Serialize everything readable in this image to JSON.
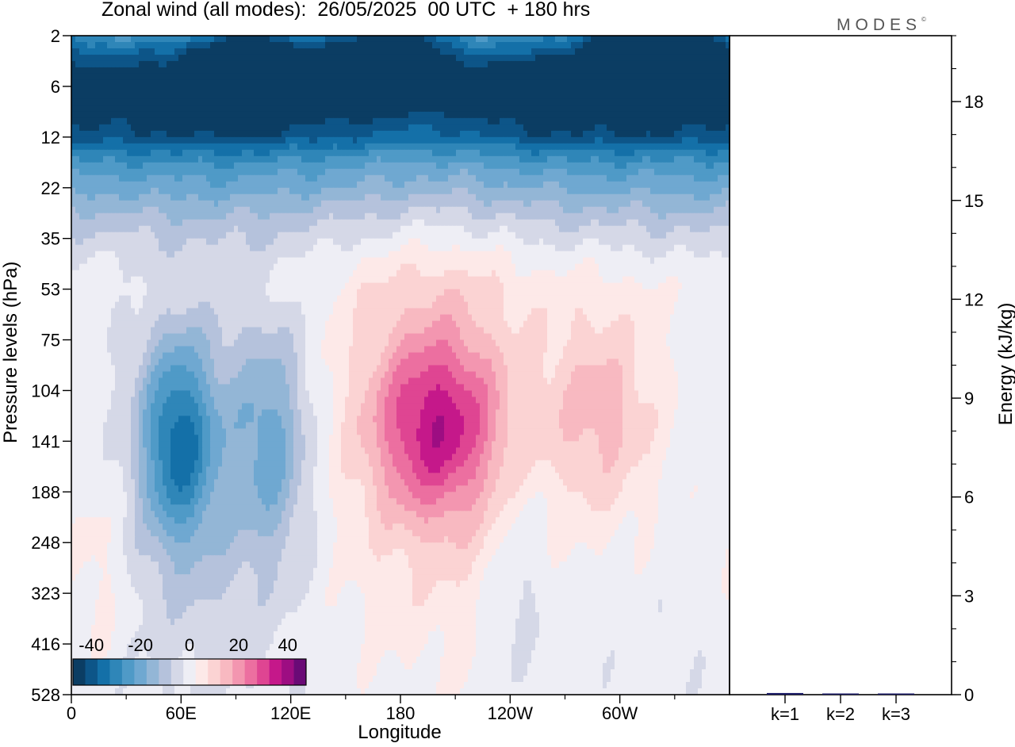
{
  "header": {
    "title": "Zonal wind (all modes):  26/05/2025  00 UTC  + 180 hrs",
    "logo_text": "MODES",
    "logo_mark": "©"
  },
  "chart_data": [
    {
      "type": "heatmap",
      "title": "Zonal wind (all modes):  26/05/2025  00 UTC  + 180 hrs",
      "xlabel": "Longitude",
      "ylabel": "Pressure levels (hPa)",
      "x_ticks": [
        "0",
        "60E",
        "120E",
        "180",
        "120W",
        "60W"
      ],
      "x_tick_values": [
        0,
        60,
        120,
        180,
        240,
        300
      ],
      "xlim": [
        0,
        360
      ],
      "y_levels_hpa": [
        2,
        6,
        12,
        22,
        35,
        53,
        75,
        104,
        141,
        188,
        248,
        323,
        416,
        528
      ],
      "y_scale": "pressure levels (top to bottom)",
      "colorbar": {
        "tick_labels": [
          "-40",
          "-20",
          "0",
          "20",
          "40"
        ],
        "tick_values": [
          -40,
          -20,
          0,
          20,
          40
        ],
        "placement": "bottom-left",
        "levels": [
          -45,
          -40,
          -35,
          -30,
          -25,
          -20,
          -15,
          -10,
          -5,
          0,
          5,
          10,
          15,
          20,
          25,
          30,
          35,
          40,
          45
        ],
        "colors": [
          "#0b3d63",
          "#0d5588",
          "#1470a8",
          "#2f86b8",
          "#4f9ac7",
          "#6fa8d1",
          "#93b6d6",
          "#b5c2dc",
          "#d5d8e7",
          "#eeeef5",
          "#fde9e8",
          "#fbd3d3",
          "#f8b9c1",
          "#f396b0",
          "#ec6fa0",
          "#df4592",
          "#c5188a",
          "#9d0d82",
          "#6a0a76"
        ]
      },
      "features": [
        {
          "lon": 0,
          "lev": 0.8,
          "value": -36,
          "slon": 130,
          "slev": 0.85
        },
        {
          "lon": 110,
          "lev": 0.5,
          "value": -26,
          "slon": 60,
          "slev": 0.9
        },
        {
          "lon": 250,
          "lev": 0.5,
          "value": -28,
          "slon": 40,
          "slev": 0.9
        },
        {
          "lon": 320,
          "lev": 0.3,
          "value": -40,
          "slon": 25,
          "slev": 0.7
        },
        {
          "lon": 175,
          "lev": 0.3,
          "value": -32,
          "slon": 25,
          "slev": 0.8
        },
        {
          "lon": 100,
          "lev": 0.5,
          "value": -22,
          "slon": 20,
          "slev": 0.6
        },
        {
          "lon": 58,
          "lev": 8.0,
          "value": -28,
          "slon": 14,
          "slev": 1.4
        },
        {
          "lon": 110,
          "lev": 8.0,
          "value": -16,
          "slon": 14,
          "slev": 1.6
        },
        {
          "lon": 75,
          "lev": 8.5,
          "value": -10,
          "slon": 30,
          "slev": 2.5
        },
        {
          "lon": 200,
          "lev": 7.7,
          "value": 27,
          "slon": 25,
          "slev": 1.3
        },
        {
          "lon": 200,
          "lev": 7.5,
          "value": 10,
          "slon": 40,
          "slev": 3.5
        },
        {
          "lon": 290,
          "lev": 7.4,
          "value": 14,
          "slon": 22,
          "slev": 1.5
        },
        {
          "lon": 245,
          "lev": 10.5,
          "value": -6,
          "slon": 12,
          "slev": 1.5
        },
        {
          "lon": 115,
          "lev": 0.0,
          "value": 9,
          "slon": 50,
          "slev": 0.3
        },
        {
          "lon": 250,
          "lev": 0.2,
          "value": 10,
          "slon": 35,
          "slev": 0.3
        },
        {
          "lon": 15,
          "lev": 10.5,
          "value": 5,
          "slon": 12,
          "slev": 1.5
        }
      ],
      "background": [
        {
          "lev": 0,
          "value": 5
        },
        {
          "lev": 0.6,
          "value": 4
        },
        {
          "lev": 1.0,
          "value": -6
        },
        {
          "lev": 2.0,
          "value": -25
        },
        {
          "lev": 3.0,
          "value": -18
        },
        {
          "lev": 3.8,
          "value": -8
        },
        {
          "lev": 4.4,
          "value": -2
        },
        {
          "lev": 5.0,
          "value": 1
        },
        {
          "lev": 6.0,
          "value": 0
        },
        {
          "lev": 8.0,
          "value": 0
        },
        {
          "lev": 13.0,
          "value": -1
        }
      ]
    },
    {
      "type": "bar",
      "title": "",
      "categories": [
        "k=1",
        "k=2",
        "k=3"
      ],
      "values": [
        0.05,
        0.02,
        0.02
      ],
      "ylabel": "Energy (kJ/kg)",
      "ylim": [
        0,
        20
      ],
      "y_ticks": [
        "0",
        "3",
        "6",
        "9",
        "12",
        "15",
        "18"
      ],
      "y_tick_values": [
        0,
        3,
        6,
        9,
        12,
        15,
        18
      ],
      "y_minor_step": 1,
      "bar_color": "#1a1a66"
    }
  ]
}
